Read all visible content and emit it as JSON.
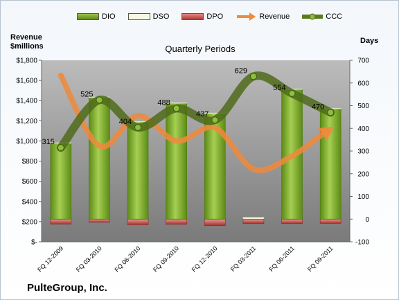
{
  "chart_data": {
    "type": "bar",
    "title": "Quarterly Periods",
    "company": "PulteGroup, Inc.",
    "y_left_label": [
      "Revenue",
      "$millions"
    ],
    "y_right_label": "Days",
    "categories": [
      "FQ 12-2009",
      "FQ 03-2010",
      "FQ 06-2010",
      "FQ 09-2010",
      "FQ 12-2010",
      "FQ 03-2011",
      "FQ 06-2011",
      "FQ 09-2011"
    ],
    "ylim_left": [
      0,
      1800
    ],
    "ylim_right": [
      -100,
      700
    ],
    "left_ticks": [
      "$-",
      "$200",
      "$400",
      "$600",
      "$800",
      "$1,000",
      "$1,200",
      "$1,400",
      "$1,600",
      "$1,800"
    ],
    "right_ticks": [
      "-100",
      "0",
      "100",
      "200",
      "300",
      "400",
      "500",
      "600",
      "700"
    ],
    "legend": [
      "DIO",
      "DSO",
      "DPO",
      "Revenue",
      "CCC"
    ],
    "series": [
      {
        "name": "DIO",
        "axis": "right",
        "kind": "bar",
        "color": "#6c9a1f",
        "values": [
          335,
          537,
          429,
          511,
          466,
          0,
          572,
          487
        ]
      },
      {
        "name": "DSO",
        "axis": "right",
        "kind": "bar",
        "color": "#f2f5d8",
        "values": [
          2,
          2,
          2,
          2,
          2,
          8,
          2,
          2
        ]
      },
      {
        "name": "DPO",
        "axis": "right",
        "kind": "bar",
        "color": "#c0504d",
        "values": [
          -22,
          -14,
          -25,
          -23,
          -29,
          -20,
          -20,
          -19
        ]
      },
      {
        "name": "Revenue",
        "axis": "left",
        "kind": "line",
        "color": "#f08a3c",
        "values": [
          1650,
          950,
          1250,
          1000,
          1130,
          720,
          850,
          1120
        ]
      },
      {
        "name": "CCC",
        "axis": "right",
        "kind": "line",
        "color": "#5a7a1e",
        "values": [
          315,
          525,
          404,
          488,
          437,
          629,
          554,
          470
        ]
      }
    ],
    "data_labels": [
      "315",
      "525",
      "404",
      "488",
      "437",
      "629",
      "554",
      "470"
    ],
    "grid": false,
    "legend_position": "top"
  }
}
